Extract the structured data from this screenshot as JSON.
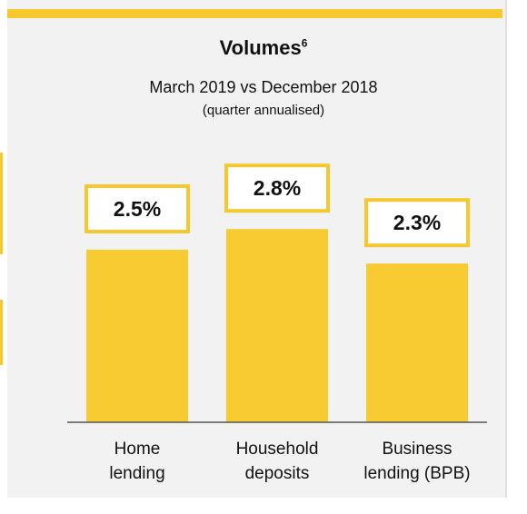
{
  "title": "Volumes",
  "title_superscript": "6",
  "subtitle": "March 2019 vs December 2018",
  "note": "(quarter annualised)",
  "colors": {
    "bar": "#f8cb33",
    "label_border": "#f5c92e",
    "accent": "#f5c92e",
    "axis": "#555555"
  },
  "chart_data": {
    "type": "bar",
    "title": "Volumes",
    "categories": [
      [
        "Home",
        "lending"
      ],
      [
        "Household",
        "deposits"
      ],
      [
        "Business",
        "lending (BPB)"
      ]
    ],
    "values": [
      2.5,
      2.8,
      2.3
    ],
    "data_labels": [
      "2.5%",
      "2.8%",
      "2.3%"
    ],
    "unit": "%",
    "ylim": [
      0,
      3.6
    ],
    "grid": false,
    "legend": "none"
  }
}
